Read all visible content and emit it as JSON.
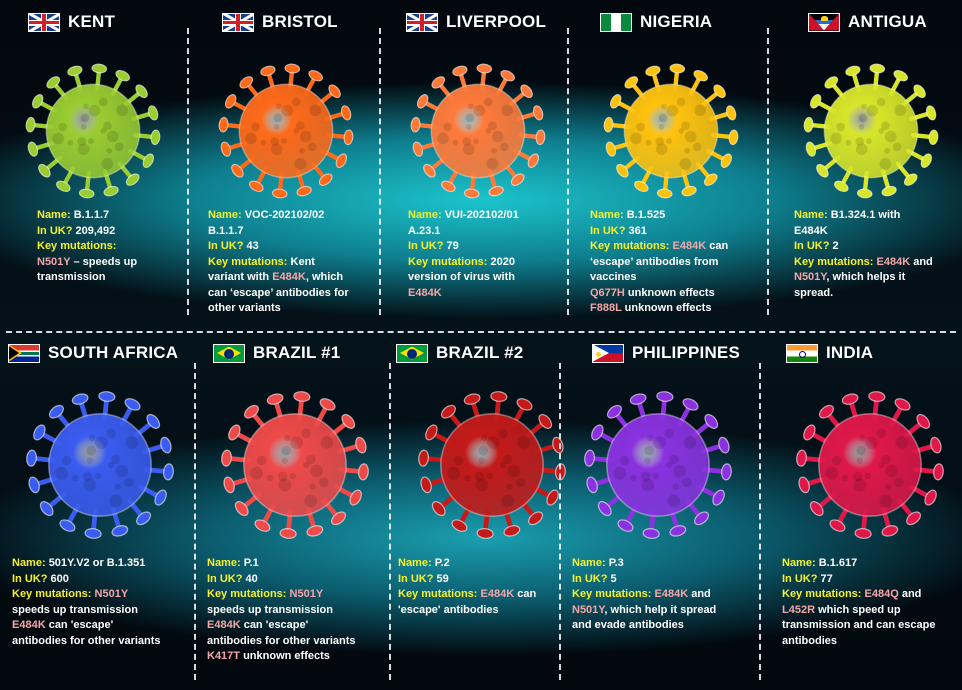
{
  "panels": [
    {
      "country": "KENT",
      "flag": "uk-flag-icon",
      "color": "#9acd32",
      "lines": [
        [
          {
            "t": "Name: ",
            "c": "k"
          },
          {
            "t": "B.1.1.7",
            "c": "w"
          }
        ],
        [
          {
            "t": "In UK? ",
            "c": "k"
          },
          {
            "t": "209,492",
            "c": "w"
          }
        ],
        [
          {
            "t": "Key mutations:",
            "c": "k"
          }
        ],
        [
          {
            "t": "N501Y",
            "c": "m"
          },
          {
            "t": " – speeds up",
            "c": "w"
          }
        ],
        [
          {
            "t": "transmission",
            "c": "w"
          }
        ]
      ]
    },
    {
      "country": "BRISTOL",
      "flag": "uk-flag-icon",
      "color": "#ff6a1a",
      "lines": [
        [
          {
            "t": "Name: ",
            "c": "k"
          },
          {
            "t": "VOC-202102/02",
            "c": "w"
          }
        ],
        [
          {
            "t": "B.1.1.7",
            "c": "w"
          }
        ],
        [
          {
            "t": "In UK? ",
            "c": "k"
          },
          {
            "t": "43",
            "c": "w"
          }
        ],
        [
          {
            "t": "Key mutations: ",
            "c": "k"
          },
          {
            "t": "Kent",
            "c": "w"
          }
        ],
        [
          {
            "t": "variant with ",
            "c": "w"
          },
          {
            "t": "E484K",
            "c": "m"
          },
          {
            "t": ", which",
            "c": "w"
          }
        ],
        [
          {
            "t": "can ‘escape’ antibodies for",
            "c": "w"
          }
        ],
        [
          {
            "t": "other variants",
            "c": "w"
          }
        ]
      ]
    },
    {
      "country": "LIVERPOOL",
      "flag": "uk-flag-icon",
      "color": "#ff7a3a",
      "lines": [
        [
          {
            "t": "Name: ",
            "c": "k"
          },
          {
            "t": "VUI-202102/01",
            "c": "w"
          }
        ],
        [
          {
            "t": "A.23.1",
            "c": "w"
          }
        ],
        [
          {
            "t": "In UK? ",
            "c": "k"
          },
          {
            "t": "79",
            "c": "w"
          }
        ],
        [
          {
            "t": "Key mutations: ",
            "c": "k"
          },
          {
            "t": "2020",
            "c": "w"
          }
        ],
        [
          {
            "t": "version of virus with",
            "c": "w"
          }
        ],
        [
          {
            "t": "E484K",
            "c": "m"
          }
        ]
      ]
    },
    {
      "country": "NIGERIA",
      "flag": "nigeria-flag-icon",
      "color": "#ffc20e",
      "lines": [
        [
          {
            "t": "Name: ",
            "c": "k"
          },
          {
            "t": "B.1.525",
            "c": "w"
          }
        ],
        [
          {
            "t": "In UK? ",
            "c": "k"
          },
          {
            "t": "361",
            "c": "w"
          }
        ],
        [
          {
            "t": "Key mutations: ",
            "c": "k"
          },
          {
            "t": "E484K",
            "c": "m"
          },
          {
            "t": " can",
            "c": "w"
          }
        ],
        [
          {
            "t": "‘escape’ antibodies from",
            "c": "w"
          }
        ],
        [
          {
            "t": "vaccines",
            "c": "w"
          }
        ],
        [
          {
            "t": "Q677H",
            "c": "m"
          },
          {
            "t": " unknown effects",
            "c": "w"
          }
        ],
        [
          {
            "t": "F888L",
            "c": "m"
          },
          {
            "t": " unknown effects",
            "c": "w"
          }
        ]
      ]
    },
    {
      "country": "ANTIGUA",
      "flag": "antigua-flag-icon",
      "color": "#d8e62a",
      "lines": [
        [
          {
            "t": "Name: ",
            "c": "k"
          },
          {
            "t": "B1.324.1 with",
            "c": "w"
          }
        ],
        [
          {
            "t": "E484K",
            "c": "w"
          }
        ],
        [
          {
            "t": "In UK? ",
            "c": "k"
          },
          {
            "t": "2",
            "c": "w"
          }
        ],
        [
          {
            "t": "Key mutations: ",
            "c": "k"
          },
          {
            "t": "E484K",
            "c": "m"
          },
          {
            "t": " and",
            "c": "w"
          }
        ],
        [
          {
            "t": "N501Y",
            "c": "m"
          },
          {
            "t": ", which helps it",
            "c": "w"
          }
        ],
        [
          {
            "t": "spread.",
            "c": "w"
          }
        ]
      ]
    },
    {
      "country": "SOUTH AFRICA",
      "flag": "south-africa-flag-icon",
      "color": "#3a5cf0",
      "lines": [
        [
          {
            "t": "Name: ",
            "c": "k"
          },
          {
            "t": "501Y.V2 or B.1.351",
            "c": "w"
          }
        ],
        [
          {
            "t": "In UK? ",
            "c": "k"
          },
          {
            "t": "600",
            "c": "w"
          }
        ],
        [
          {
            "t": "Key mutations: ",
            "c": "k"
          },
          {
            "t": "N501Y",
            "c": "m"
          }
        ],
        [
          {
            "t": "speeds up transmission",
            "c": "w"
          }
        ],
        [
          {
            "t": "E484K",
            "c": "m"
          },
          {
            "t": " can 'escape'",
            "c": "w"
          }
        ],
        [
          {
            "t": "antibodies for other variants",
            "c": "w"
          }
        ]
      ]
    },
    {
      "country": "BRAZIL #1",
      "flag": "brazil-flag-icon",
      "color": "#ef4a4a",
      "lines": [
        [
          {
            "t": "Name: ",
            "c": "k"
          },
          {
            "t": "P.1",
            "c": "w"
          }
        ],
        [
          {
            "t": "In UK? ",
            "c": "k"
          },
          {
            "t": "40",
            "c": "w"
          }
        ],
        [
          {
            "t": "Key mutations: ",
            "c": "k"
          },
          {
            "t": "N501Y",
            "c": "m"
          }
        ],
        [
          {
            "t": "speeds up transmission",
            "c": "w"
          }
        ],
        [
          {
            "t": "E484K",
            "c": "m"
          },
          {
            "t": " can 'escape'",
            "c": "w"
          }
        ],
        [
          {
            "t": "antibodies for other variants",
            "c": "w"
          }
        ],
        [
          {
            "t": "K417T",
            "c": "m"
          },
          {
            "t": " unknown effects",
            "c": "w"
          }
        ]
      ]
    },
    {
      "country": "BRAZIL #2",
      "flag": "brazil-flag-icon",
      "color": "#c41a1a",
      "lines": [
        [
          {
            "t": "Name: ",
            "c": "k"
          },
          {
            "t": "P.2",
            "c": "w"
          }
        ],
        [
          {
            "t": "In UK? ",
            "c": "k"
          },
          {
            "t": "59",
            "c": "w"
          }
        ],
        [
          {
            "t": "Key mutations: ",
            "c": "k"
          },
          {
            "t": "E484K",
            "c": "m"
          },
          {
            "t": " can",
            "c": "w"
          }
        ],
        [
          {
            "t": "'escape' antibodies",
            "c": "w"
          }
        ]
      ]
    },
    {
      "country": "PHILIPPINES",
      "flag": "philippines-flag-icon",
      "color": "#8a32e0",
      "lines": [
        [
          {
            "t": "Name: ",
            "c": "k"
          },
          {
            "t": "P.3",
            "c": "w"
          }
        ],
        [
          {
            "t": "In UK? ",
            "c": "k"
          },
          {
            "t": "5",
            "c": "w"
          }
        ],
        [
          {
            "t": "Key mutations: ",
            "c": "k"
          },
          {
            "t": "E484K",
            "c": "m"
          },
          {
            "t": " and",
            "c": "w"
          }
        ],
        [
          {
            "t": "N501Y",
            "c": "m"
          },
          {
            "t": ", which help it spread",
            "c": "w"
          }
        ],
        [
          {
            "t": "and evade antibodies",
            "c": "w"
          }
        ]
      ]
    },
    {
      "country": "INDIA",
      "flag": "india-flag-icon",
      "color": "#e0184a",
      "lines": [
        [
          {
            "t": "Name: ",
            "c": "k"
          },
          {
            "t": "B.1.617",
            "c": "w"
          }
        ],
        [
          {
            "t": "In UK? ",
            "c": "k"
          },
          {
            "t": "77",
            "c": "w"
          }
        ],
        [
          {
            "t": "Key mutations: ",
            "c": "k"
          },
          {
            "t": "E484Q",
            "c": "m"
          },
          {
            "t": " and",
            "c": "w"
          }
        ],
        [
          {
            "t": "L452R",
            "c": "m"
          },
          {
            "t": " which speed up",
            "c": "w"
          }
        ],
        [
          {
            "t": "transmission and can escape",
            "c": "w"
          }
        ],
        [
          {
            "t": "antibodies",
            "c": "w"
          }
        ]
      ]
    }
  ]
}
